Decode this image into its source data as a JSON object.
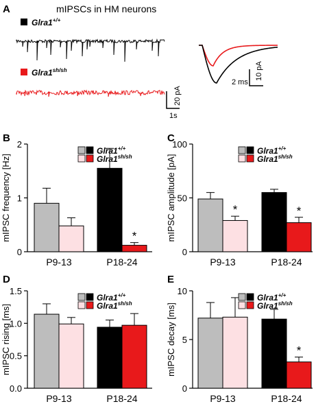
{
  "colors": {
    "wt_young": "#bdbdbd",
    "sh_young": "#fde0e3",
    "wt_old": "#000000",
    "sh_old": "#e8191b",
    "trace_wt": "#000000",
    "trace_sh": "#e8191b",
    "avg_sh": "#e8191b"
  },
  "panel_a": {
    "letter": "A",
    "title": "mIPSCs in HM neurons",
    "wt_label": "Glra1",
    "wt_sup": "+/+",
    "sh_label": "Glra1",
    "sh_sup": "sh/sh",
    "trace_scale": {
      "x": "1s",
      "y": "20 pA"
    },
    "avg_scale": {
      "x": "2 ms",
      "y": "10 pA"
    }
  },
  "chart_data": [
    {
      "type": "bar",
      "panel": "B",
      "ylabel": "mIPSC frequency [Hz]",
      "categories": [
        "P9-13",
        "P18-24"
      ],
      "ylim": [
        0,
        2
      ],
      "yticks": [
        0,
        1,
        2
      ],
      "legend": {
        "placement": "top-right",
        "wt": "Glra1",
        "wt_sup": "+/+",
        "sh": "Glra1",
        "sh_sup": "sh/sh"
      },
      "series": [
        {
          "genotype": "wt",
          "values": [
            0.9,
            1.55
          ],
          "errors": [
            0.28,
            0.37
          ]
        },
        {
          "genotype": "sh",
          "values": [
            0.48,
            0.12
          ],
          "errors": [
            0.15,
            0.05
          ]
        }
      ],
      "significance": [
        {
          "category": 1,
          "series": 1,
          "mark": "*"
        }
      ]
    },
    {
      "type": "bar",
      "panel": "C",
      "ylabel": "mIPSC amplitude [pA]",
      "categories": [
        "P9-13",
        "P18-24"
      ],
      "ylim": [
        0,
        100
      ],
      "yticks": [
        0,
        50,
        100
      ],
      "legend": {
        "placement": "top-right",
        "wt": "Glra1",
        "wt_sup": "+/+",
        "sh": "Glra1",
        "sh_sup": "sh/sh"
      },
      "series": [
        {
          "genotype": "wt",
          "values": [
            49,
            55
          ],
          "errors": [
            6,
            3
          ]
        },
        {
          "genotype": "sh",
          "values": [
            29,
            27
          ],
          "errors": [
            4,
            5
          ]
        }
      ],
      "significance": [
        {
          "category": 0,
          "series": 1,
          "mark": "*"
        },
        {
          "category": 1,
          "series": 1,
          "mark": "*"
        }
      ]
    },
    {
      "type": "bar",
      "panel": "D",
      "ylabel": "mIPSC rising [ms]",
      "categories": [
        "P9-13",
        "P18-24"
      ],
      "ylim": [
        0,
        1.5
      ],
      "yticks": [
        0.0,
        0.5,
        1.0,
        1.5
      ],
      "legend": {
        "placement": "top-right",
        "wt": "Glra1",
        "wt_sup": "+/+",
        "sh": "Glra1",
        "sh_sup": "sh/sh"
      },
      "series": [
        {
          "genotype": "wt",
          "values": [
            1.14,
            0.94
          ],
          "errors": [
            0.16,
            0.11
          ]
        },
        {
          "genotype": "sh",
          "values": [
            0.99,
            0.97
          ],
          "errors": [
            0.1,
            0.18
          ]
        }
      ],
      "significance": []
    },
    {
      "type": "bar",
      "panel": "E",
      "ylabel": "mIPSC decay [ms]",
      "categories": [
        "P9-13",
        "P18-24"
      ],
      "ylim": [
        0,
        10
      ],
      "yticks": [
        0,
        5,
        10
      ],
      "legend": {
        "placement": "top-right",
        "wt": "Glra1",
        "wt_sup": "+/+",
        "sh": "Glra1",
        "sh_sup": "sh/sh"
      },
      "series": [
        {
          "genotype": "wt",
          "values": [
            7.2,
            7.1
          ],
          "errors": [
            1.6,
            1.0
          ]
        },
        {
          "genotype": "sh",
          "values": [
            7.3,
            2.7
          ],
          "errors": [
            2.0,
            0.5
          ]
        }
      ],
      "significance": [
        {
          "category": 1,
          "series": 1,
          "mark": "*"
        }
      ]
    }
  ]
}
